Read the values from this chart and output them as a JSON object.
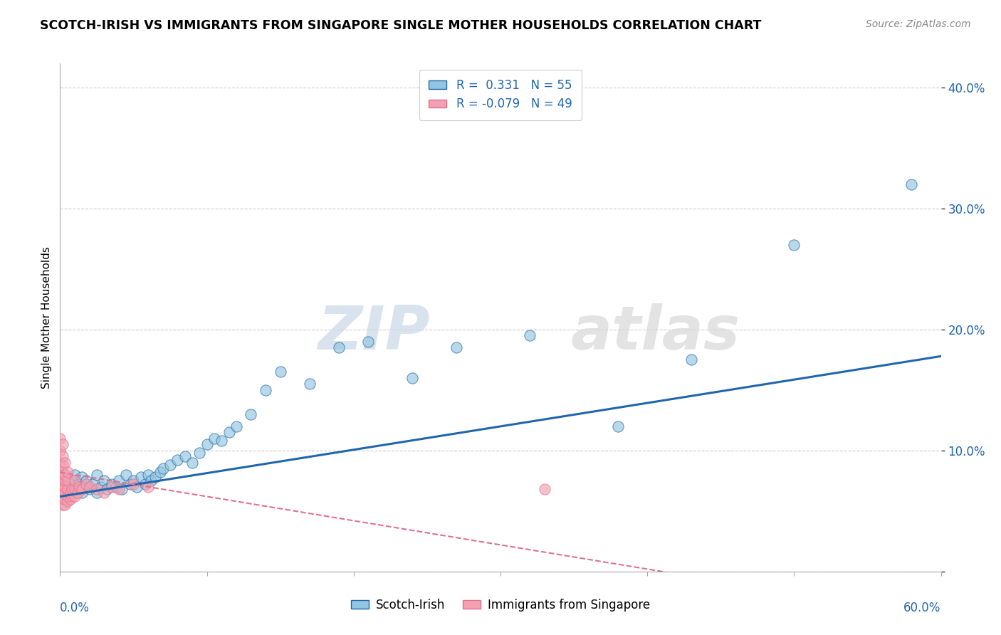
{
  "title": "SCOTCH-IRISH VS IMMIGRANTS FROM SINGAPORE SINGLE MOTHER HOUSEHOLDS CORRELATION CHART",
  "source": "Source: ZipAtlas.com",
  "legend_label1": "Scotch-Irish",
  "legend_label2": "Immigrants from Singapore",
  "r1": 0.331,
  "n1": 55,
  "r2": -0.079,
  "n2": 49,
  "xlim": [
    0.0,
    0.6
  ],
  "ylim": [
    0.0,
    0.42
  ],
  "yticks": [
    0.0,
    0.1,
    0.2,
    0.3,
    0.4
  ],
  "ytick_labels": [
    "",
    "10.0%",
    "20.0%",
    "30.0%",
    "40.0%"
  ],
  "color_blue": "#92c5de",
  "color_pink": "#f4a0b0",
  "color_line_blue": "#2166ac",
  "color_line_pink": "#e07090",
  "watermark_zip": "ZIP",
  "watermark_atlas": "atlas",
  "scotch_irish_x": [
    0.005,
    0.008,
    0.01,
    0.01,
    0.012,
    0.013,
    0.015,
    0.015,
    0.017,
    0.018,
    0.02,
    0.022,
    0.025,
    0.025,
    0.028,
    0.03,
    0.032,
    0.035,
    0.038,
    0.04,
    0.042,
    0.045,
    0.048,
    0.05,
    0.052,
    0.055,
    0.058,
    0.06,
    0.062,
    0.065,
    0.068,
    0.07,
    0.075,
    0.08,
    0.085,
    0.09,
    0.095,
    0.1,
    0.105,
    0.11,
    0.115,
    0.12,
    0.13,
    0.14,
    0.15,
    0.17,
    0.19,
    0.21,
    0.24,
    0.27,
    0.32,
    0.38,
    0.43,
    0.5,
    0.58
  ],
  "scotch_irish_y": [
    0.07,
    0.065,
    0.075,
    0.08,
    0.068,
    0.072,
    0.065,
    0.078,
    0.07,
    0.075,
    0.068,
    0.072,
    0.065,
    0.08,
    0.07,
    0.075,
    0.068,
    0.072,
    0.07,
    0.075,
    0.068,
    0.08,
    0.072,
    0.075,
    0.07,
    0.078,
    0.072,
    0.08,
    0.075,
    0.078,
    0.082,
    0.085,
    0.088,
    0.092,
    0.095,
    0.09,
    0.098,
    0.105,
    0.11,
    0.108,
    0.115,
    0.12,
    0.13,
    0.15,
    0.165,
    0.155,
    0.185,
    0.19,
    0.16,
    0.185,
    0.195,
    0.12,
    0.175,
    0.27,
    0.32
  ],
  "singapore_x": [
    0.0,
    0.0,
    0.0,
    0.0,
    0.0,
    0.0,
    0.0,
    0.0,
    0.002,
    0.002,
    0.002,
    0.002,
    0.002,
    0.002,
    0.002,
    0.002,
    0.002,
    0.002,
    0.003,
    0.003,
    0.003,
    0.003,
    0.003,
    0.003,
    0.003,
    0.005,
    0.005,
    0.005,
    0.005,
    0.005,
    0.007,
    0.007,
    0.008,
    0.008,
    0.01,
    0.01,
    0.01,
    0.012,
    0.013,
    0.015,
    0.018,
    0.02,
    0.025,
    0.03,
    0.035,
    0.04,
    0.05,
    0.06,
    0.33
  ],
  "singapore_y": [
    0.06,
    0.065,
    0.07,
    0.075,
    0.08,
    0.09,
    0.1,
    0.11,
    0.055,
    0.06,
    0.065,
    0.068,
    0.072,
    0.078,
    0.082,
    0.088,
    0.095,
    0.105,
    0.055,
    0.06,
    0.065,
    0.07,
    0.075,
    0.08,
    0.09,
    0.058,
    0.062,
    0.068,
    0.075,
    0.082,
    0.06,
    0.065,
    0.062,
    0.068,
    0.062,
    0.068,
    0.075,
    0.065,
    0.07,
    0.068,
    0.072,
    0.07,
    0.068,
    0.065,
    0.07,
    0.068,
    0.072,
    0.07,
    0.068
  ]
}
